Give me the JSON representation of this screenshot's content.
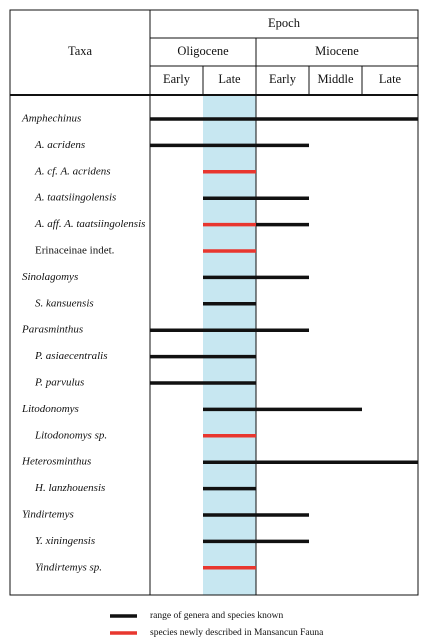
{
  "header": {
    "taxa": "Taxa",
    "epoch": "Epoch",
    "epochs": [
      {
        "name": "Oligocene",
        "stages": [
          "Early",
          "Late"
        ]
      },
      {
        "name": "Miocene",
        "stages": [
          "Early",
          "Middle",
          "Late"
        ]
      }
    ]
  },
  "taxa": [
    {
      "name": "Amphechinus",
      "rank": "genus",
      "italic": true,
      "segments": [
        {
          "range": [
            0,
            5
          ],
          "color": "#111111"
        }
      ]
    },
    {
      "name": "A. acridens",
      "rank": "species",
      "italic": true,
      "segments": [
        {
          "range": [
            0,
            3
          ],
          "color": "#111111"
        }
      ]
    },
    {
      "name": "A. cf. A. acridens",
      "rank": "species",
      "italic": true,
      "segments": [
        {
          "range": [
            1,
            2
          ],
          "color": "#e8372f"
        }
      ]
    },
    {
      "name": "A. taatsiingolensis",
      "rank": "species",
      "italic": true,
      "segments": [
        {
          "range": [
            1,
            3
          ],
          "color": "#111111"
        }
      ]
    },
    {
      "name": "A. aff. A. taatsiingolensis",
      "rank": "species",
      "italic": true,
      "segments": [
        {
          "range": [
            1,
            2
          ],
          "color": "#e8372f"
        },
        {
          "range": [
            2,
            3
          ],
          "color": "#111111"
        }
      ]
    },
    {
      "name": "Erinaceinae indet.",
      "rank": "species",
      "italic": false,
      "segments": [
        {
          "range": [
            1,
            2
          ],
          "color": "#e8372f"
        }
      ]
    },
    {
      "name": "Sinolagomys",
      "rank": "genus",
      "italic": true,
      "segments": [
        {
          "range": [
            1,
            3
          ],
          "color": "#111111"
        }
      ]
    },
    {
      "name": "S. kansuensis",
      "rank": "species",
      "italic": true,
      "segments": [
        {
          "range": [
            1,
            2
          ],
          "color": "#111111"
        }
      ]
    },
    {
      "name": "Parasminthus",
      "rank": "genus",
      "italic": true,
      "segments": [
        {
          "range": [
            0,
            3
          ],
          "color": "#111111"
        }
      ]
    },
    {
      "name": "P. asiaecentralis",
      "rank": "species",
      "italic": true,
      "segments": [
        {
          "range": [
            0,
            2
          ],
          "color": "#111111"
        }
      ]
    },
    {
      "name": "P. parvulus",
      "rank": "species",
      "italic": true,
      "segments": [
        {
          "range": [
            0,
            2
          ],
          "color": "#111111"
        }
      ]
    },
    {
      "name": "Litodonomys",
      "rank": "genus",
      "italic": true,
      "segments": [
        {
          "range": [
            1,
            4
          ],
          "color": "#111111"
        }
      ]
    },
    {
      "name": "Litodonomys sp.",
      "rank": "species",
      "italic": true,
      "segments": [
        {
          "range": [
            1,
            2
          ],
          "color": "#e8372f"
        }
      ]
    },
    {
      "name": "Heterosminthus",
      "rank": "genus",
      "italic": true,
      "segments": [
        {
          "range": [
            1,
            5
          ],
          "color": "#111111"
        }
      ]
    },
    {
      "name": "H. lanzhouensis",
      "rank": "species",
      "italic": true,
      "segments": [
        {
          "range": [
            1,
            2
          ],
          "color": "#111111"
        }
      ]
    },
    {
      "name": "Yindirtemys",
      "rank": "genus",
      "italic": true,
      "segments": [
        {
          "range": [
            1,
            3
          ],
          "color": "#111111"
        }
      ]
    },
    {
      "name": "Y. xiningensis",
      "rank": "species",
      "italic": true,
      "segments": [
        {
          "range": [
            1,
            3
          ],
          "color": "#111111"
        }
      ]
    },
    {
      "name": "Yindirtemys sp.",
      "rank": "species",
      "italic": true,
      "segments": [
        {
          "range": [
            1,
            2
          ],
          "color": "#e8372f"
        }
      ]
    }
  ],
  "legend": [
    {
      "label": "range of genera and species known",
      "color": "#111111"
    },
    {
      "label": "species newly described in Mansancun Fauna",
      "color": "#e8372f"
    }
  ]
}
